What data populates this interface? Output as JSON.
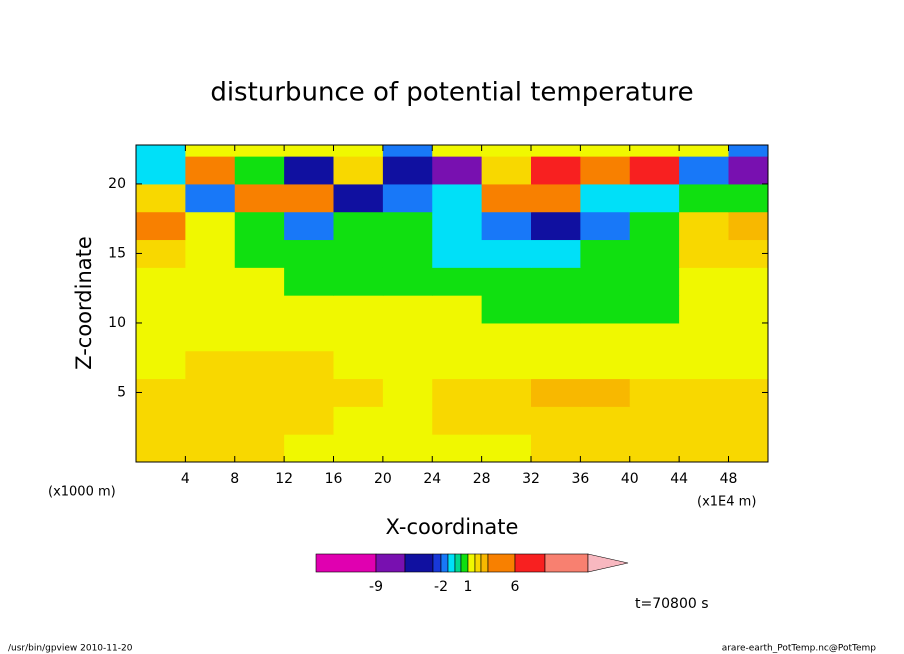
{
  "chart_data": {
    "type": "contour",
    "title": "disturbunce of potential temperature",
    "x_label": "X-coordinate",
    "y_label": "Z-coordinate",
    "x_unit": "(x1000 m)",
    "x_scale_note": "(x1E4 m)",
    "time_label": "t=70800 s",
    "footer_left": "/usr/bin/gpview  2010-11-20",
    "footer_right": "arare-earth_PotTemp.nc@PotTemp",
    "xlim": [
      0,
      51.2
    ],
    "ylim": [
      0,
      22.8
    ],
    "xticks": [
      4,
      8,
      12,
      16,
      20,
      24,
      28,
      32,
      36,
      40,
      44,
      48
    ],
    "yticks": [
      5,
      10,
      15,
      20
    ],
    "x": [
      2,
      6,
      10,
      14,
      18,
      22,
      26,
      30,
      34,
      38,
      42,
      46,
      50
    ],
    "y": [
      1,
      3,
      5,
      7,
      9,
      11,
      13,
      15,
      17,
      19,
      21,
      23
    ],
    "z": [
      [
        1.7,
        1.7,
        1.7,
        1.2,
        1.2,
        1.2,
        1.2,
        1.2,
        1.7,
        1.7,
        1.7,
        1.7,
        1.7
      ],
      [
        1.7,
        1.7,
        1.7,
        1.7,
        1.2,
        1.2,
        1.7,
        1.7,
        1.7,
        1.7,
        1.7,
        1.7,
        1.7
      ],
      [
        1.7,
        1.7,
        1.7,
        1.7,
        1.7,
        1.2,
        1.7,
        1.7,
        2.5,
        2.5,
        1.7,
        1.7,
        1.7
      ],
      [
        1.2,
        1.7,
        1.7,
        1.7,
        1.2,
        1.2,
        1.2,
        1.2,
        1.2,
        1.2,
        1.2,
        1.2,
        1.2
      ],
      [
        1.2,
        1.2,
        1.2,
        1.2,
        1.2,
        1.2,
        1.2,
        1.2,
        1.2,
        1.2,
        1.2,
        1.2,
        1.2
      ],
      [
        1.2,
        1.2,
        1.2,
        1.2,
        1.2,
        1.2,
        1.2,
        0.5,
        0.5,
        0.5,
        0.5,
        1.2,
        1.2
      ],
      [
        1.2,
        1.2,
        1.2,
        0.5,
        0.5,
        0.5,
        0.5,
        0.5,
        0.5,
        0.5,
        0.5,
        1.2,
        1.2
      ],
      [
        1.7,
        1.2,
        0.5,
        0.5,
        0.5,
        0.5,
        -0.7,
        -0.7,
        -0.7,
        0.5,
        0.5,
        1.7,
        1.7
      ],
      [
        4,
        1.2,
        0.5,
        -1.5,
        0.5,
        0.5,
        -0.7,
        -1.5,
        -4,
        -1.5,
        0.5,
        1.7,
        2.5
      ],
      [
        1.7,
        -1.5,
        4,
        4,
        -4,
        -1.5,
        -0.7,
        4,
        4,
        -0.7,
        -0.7,
        0.5,
        0.5
      ],
      [
        -0.7,
        4,
        0.5,
        -4,
        1.7,
        -4,
        -7,
        1.7,
        7,
        4,
        7,
        -1.5,
        -7
      ],
      [
        -0.7,
        1.2,
        1.2,
        1.2,
        1.2,
        -1.5,
        1.2,
        1.2,
        1.2,
        1.2,
        1.2,
        1.2,
        -1.5
      ]
    ],
    "colorbar": {
      "levels": [
        -9,
        -5,
        -3,
        -2,
        -1,
        -0.5,
        0,
        1,
        1.5,
        2,
        3,
        6,
        9,
        12
      ],
      "colors": [
        "#e000b0",
        "#7810b0",
        "#1010a0",
        "#1838d8",
        "#1878f8",
        "#00e0f8",
        "#00d890",
        "#10e010",
        "#f0f800",
        "#f8d800",
        "#f8b800",
        "#f88000",
        "#f82020",
        "#f88070",
        "#f8b8c0"
      ],
      "ticks": [
        -9,
        -2,
        1,
        6
      ]
    }
  }
}
